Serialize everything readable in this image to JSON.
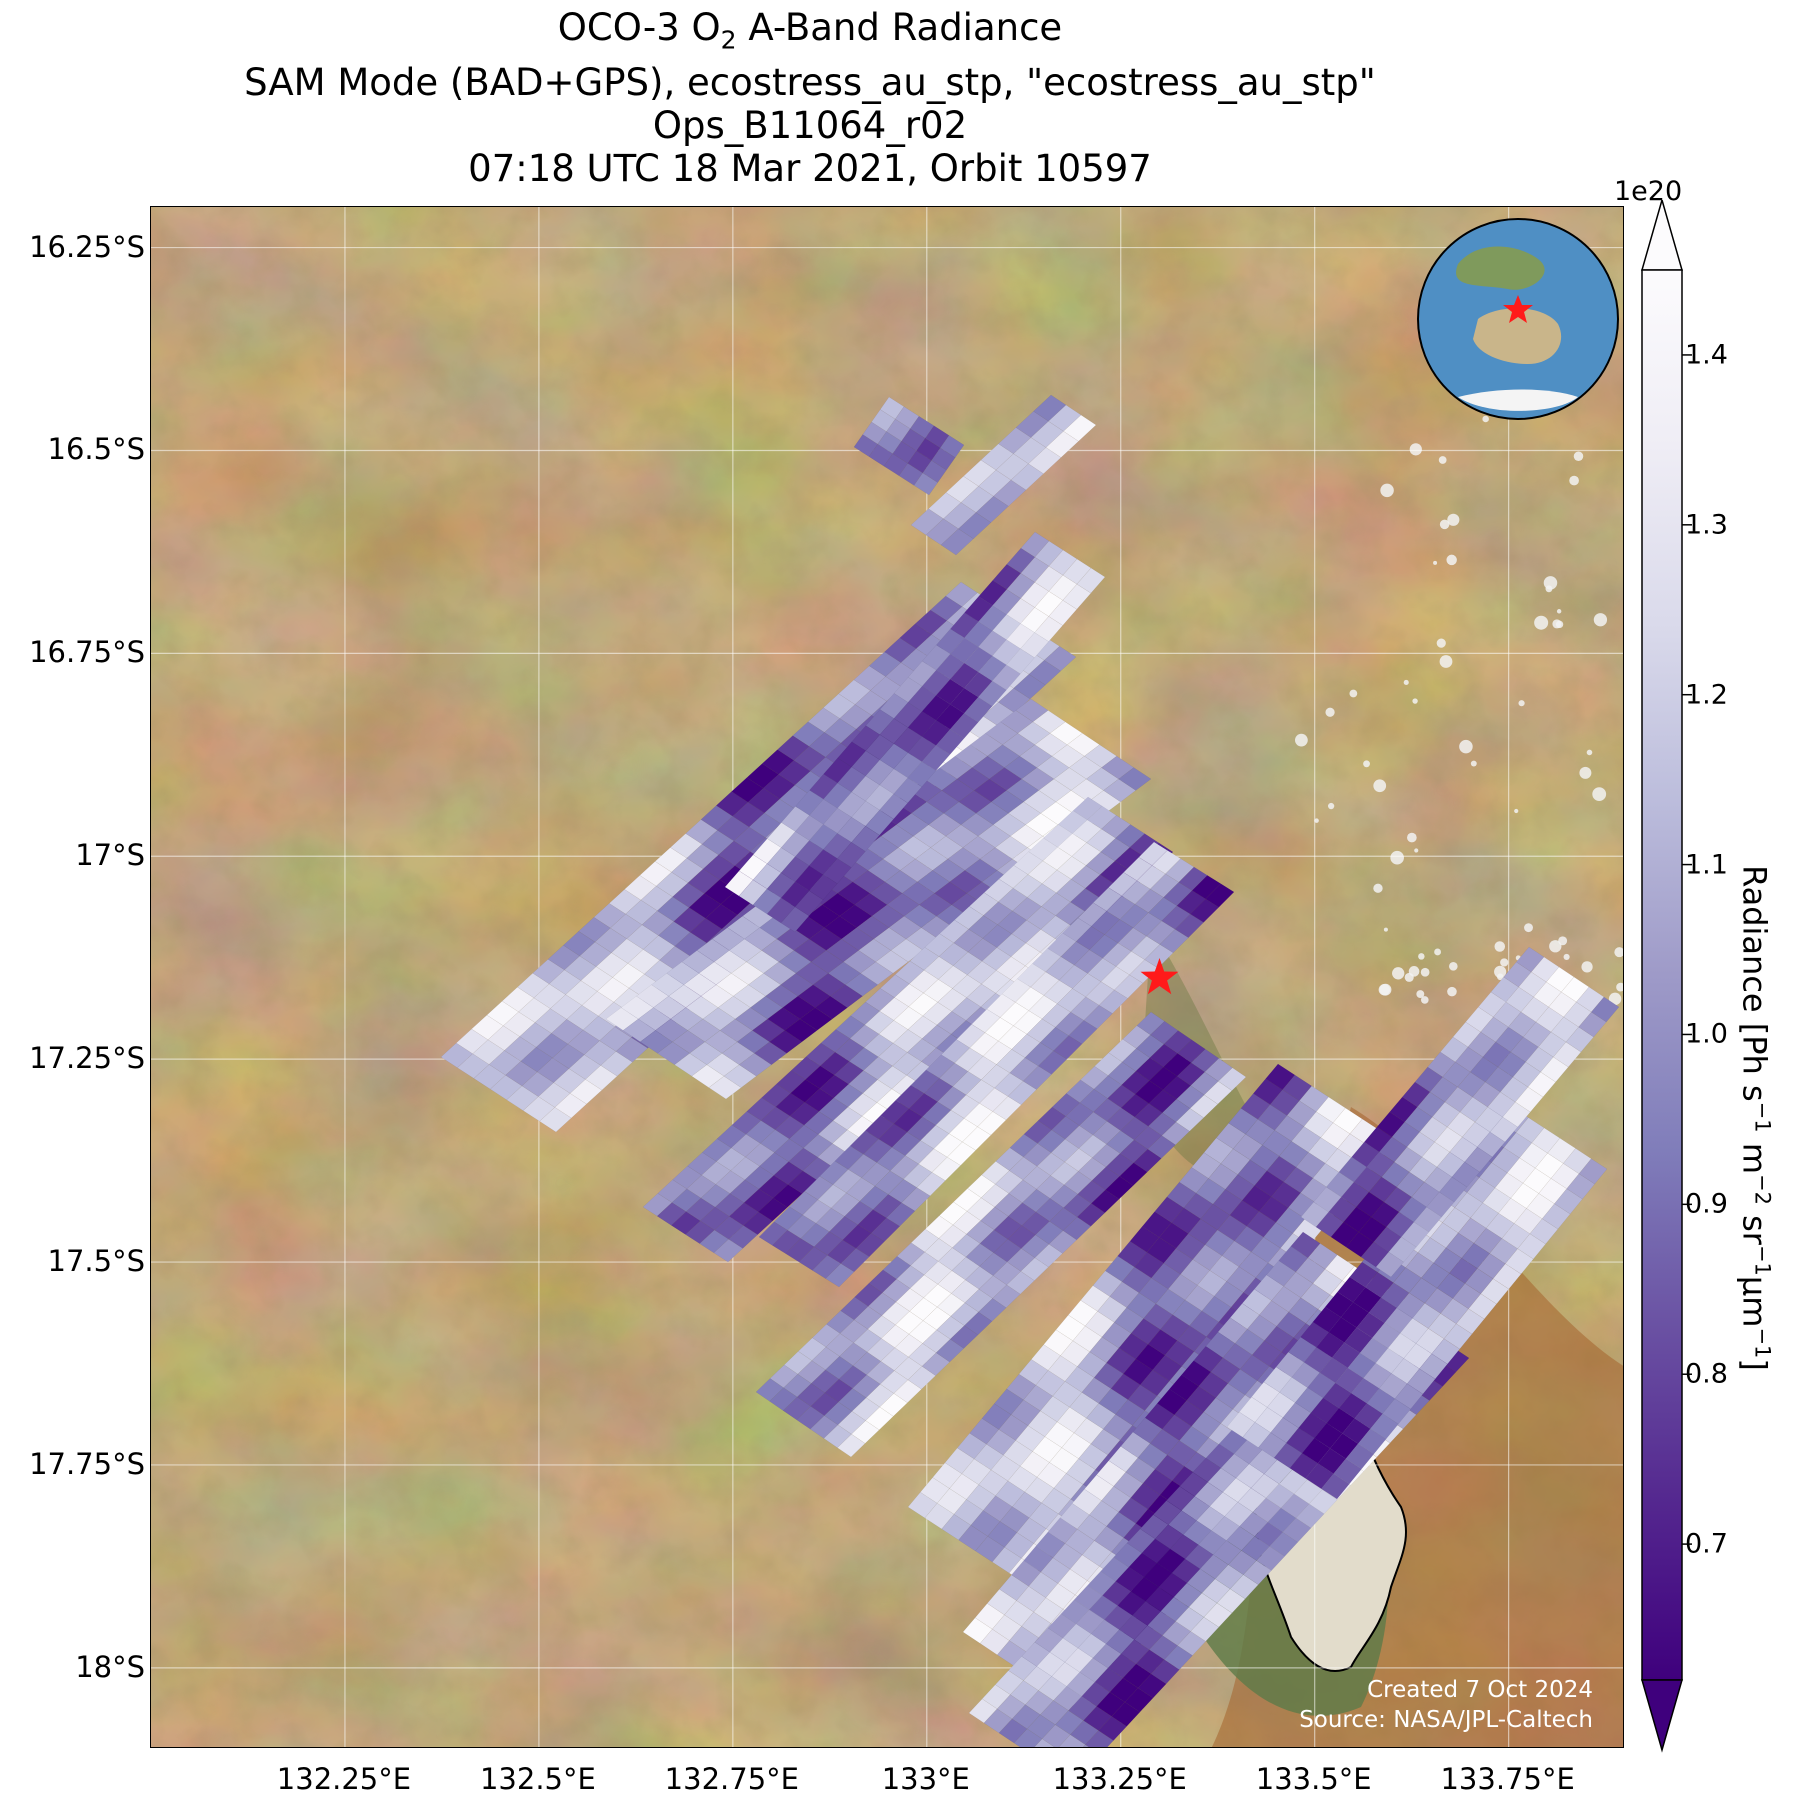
{
  "title": {
    "line1_pre": "OCO-3 O",
    "line1_sub": "2",
    "line1_post": " A-Band Radiance",
    "line2": "SAM Mode (BAD+GPS), ecostress_au_stp, \"ecostress_au_stp\"",
    "line3": "Ops_B11064_r02",
    "line4": "07:18 UTC 18 Mar 2021, Orbit 10597"
  },
  "lat_ticks": [
    "16.25°S",
    "16.5°S",
    "16.75°S",
    "17°S",
    "17.25°S",
    "17.5°S",
    "17.75°S",
    "18°S"
  ],
  "lon_ticks": [
    "132.25°E",
    "132.5°E",
    "132.75°E",
    "133°E",
    "133.25°E",
    "133.5°E",
    "133.75°E"
  ],
  "credit": {
    "line1": "Created 7 Oct 2024",
    "line2": "Source: NASA/JPL-Caltech"
  },
  "colorbar": {
    "multiplier": "1e20",
    "ticks": [
      "0.7",
      "0.8",
      "0.9",
      "1.0",
      "1.1",
      "1.2",
      "1.3",
      "1.4"
    ],
    "label_pre": "Radiance [Ph s",
    "label_sup1": "−1",
    "label_mid1": " m",
    "label_sup2": "−2",
    "label_mid2": " sr",
    "label_sup3": "−1",
    "label_mid3": "μm",
    "label_sup4": "−1",
    "label_post": "]",
    "colors": [
      "#3f007d",
      "#54278f",
      "#6a51a3",
      "#807dba",
      "#9e9ac8",
      "#bcbddc",
      "#dadaeb",
      "#efedf5",
      "#fcfbfd"
    ]
  },
  "chart_data": {
    "type": "map",
    "lon_range": [
      132.0,
      133.9
    ],
    "lat_range": [
      -18.1,
      -16.2
    ],
    "variable": "O2 A-Band Radiance",
    "color_range": [
      0.62,
      1.45
    ],
    "target": {
      "lon": 133.3,
      "lat": -17.15
    }
  },
  "basemap": {
    "land": "#8a6a3a",
    "land_dark": "#6e5a30",
    "land_red": "#a4622c",
    "lake": "#e2dccb",
    "lake_rim": "#5d7a48"
  }
}
